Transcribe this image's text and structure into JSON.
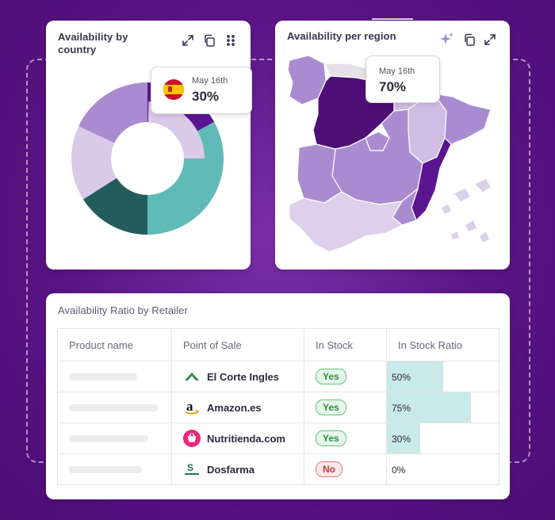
{
  "country_card": {
    "title_line1": "Availability by",
    "title_line2": "country",
    "tooltip": {
      "date": "May 16th",
      "value": "30%"
    },
    "icons": [
      "expand-icon",
      "copy-icon",
      "drag-dots-icon"
    ],
    "donut": [
      {
        "share": 0.17,
        "color": "#5b1591"
      },
      {
        "share": 0.33,
        "color": "#5fbab8"
      },
      {
        "share": 0.16,
        "color": "#245c5c"
      },
      {
        "share": 0.16,
        "color": "#dbc9e8"
      },
      {
        "share": 0.18,
        "color": "#a98cd0"
      }
    ]
  },
  "region_card": {
    "title": "Availability per region",
    "tooltip": {
      "date": "May 16th",
      "value": "70%"
    },
    "icons": [
      "sparkle-icon",
      "copy-icon",
      "expand-icon"
    ]
  },
  "retailer_card": {
    "title": "Availability Ratio by Retailer",
    "columns": [
      "Product name",
      "Point of Sale",
      "In Stock",
      "In Stock Ratio"
    ],
    "rows": [
      {
        "pos": "El Corte Ingles",
        "logo": "el-corte-ingles-logo",
        "stock": "Yes",
        "ratio_label": "50%",
        "ratio": 0.5
      },
      {
        "pos": "Amazon.es",
        "logo": "amazon-logo",
        "stock": "Yes",
        "ratio_label": "75%",
        "ratio": 0.75
      },
      {
        "pos": "Nutritienda.com",
        "logo": "nutritienda-logo",
        "stock": "Yes",
        "ratio_label": "30%",
        "ratio": 0.3
      },
      {
        "pos": "Dosfarma",
        "logo": "dosfarma-logo",
        "stock": "No",
        "ratio_label": "0%",
        "ratio": 0
      }
    ]
  },
  "colors": {
    "background": "#5a1485",
    "dark_purple": "#5b1591",
    "teal": "#5fbab8",
    "dark_teal": "#245c5c",
    "ratio_bar": "#c9e9ea"
  }
}
